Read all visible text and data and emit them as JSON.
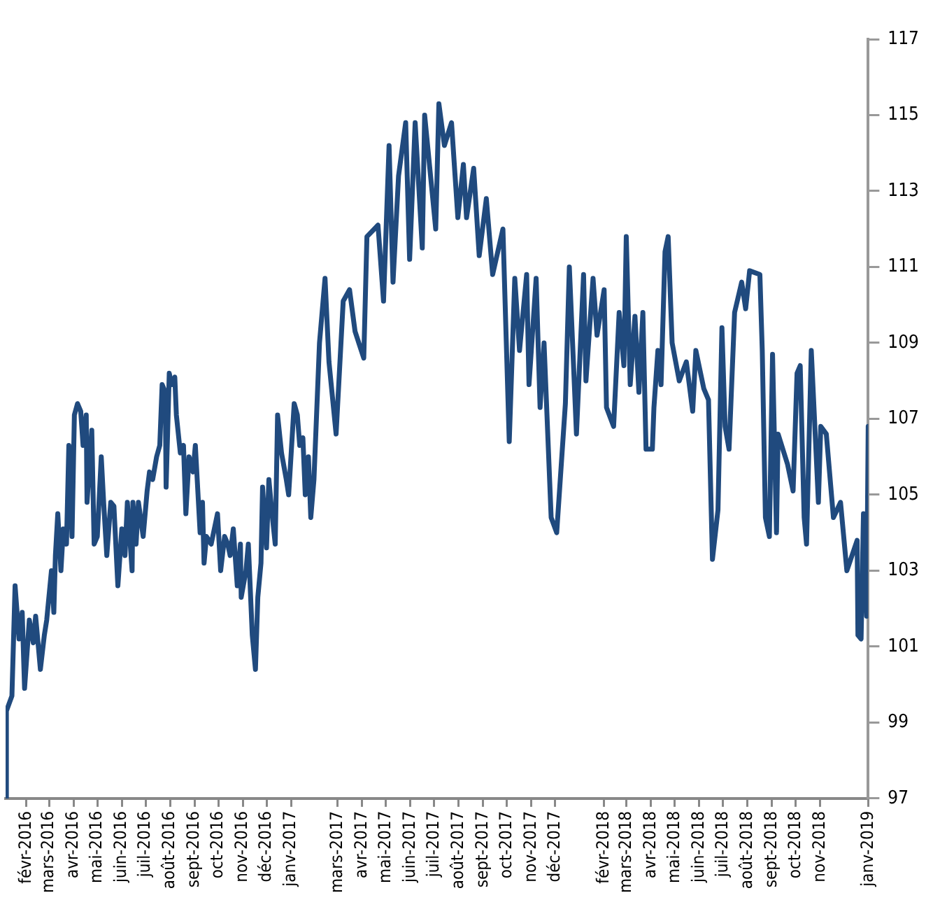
{
  "chart_data": {
    "type": "line",
    "xlim": [
      "2016-01-06",
      "2019-01-01"
    ],
    "ylim": [
      97,
      117
    ],
    "yticks": [
      97,
      99,
      101,
      103,
      105,
      107,
      109,
      111,
      113,
      115,
      117
    ],
    "xticks": [
      {
        "value": "2016-02-01",
        "label": "févr-2016"
      },
      {
        "value": "2016-03-01",
        "label": "mars-2016"
      },
      {
        "value": "2016-04-01",
        "label": "avr-2016"
      },
      {
        "value": "2016-05-01",
        "label": "mai-2016"
      },
      {
        "value": "2016-06-01",
        "label": "juin-2016"
      },
      {
        "value": "2016-07-01",
        "label": "juil-2016"
      },
      {
        "value": "2016-08-01",
        "label": "août-2016"
      },
      {
        "value": "2016-09-01",
        "label": "sept-2016"
      },
      {
        "value": "2016-10-01",
        "label": "oct-2016"
      },
      {
        "value": "2016-11-01",
        "label": "nov-2016"
      },
      {
        "value": "2016-12-01",
        "label": "déc-2016"
      },
      {
        "value": "2017-01-01",
        "label": "janv-2017"
      },
      {
        "value": "2017-03-01",
        "label": "mars-2017"
      },
      {
        "value": "2017-04-01",
        "label": "avr-2017"
      },
      {
        "value": "2017-05-01",
        "label": "mai-2017"
      },
      {
        "value": "2017-06-01",
        "label": "juin-2017"
      },
      {
        "value": "2017-07-01",
        "label": "juil-2017"
      },
      {
        "value": "2017-08-01",
        "label": "août-2017"
      },
      {
        "value": "2017-09-01",
        "label": "sept-2017"
      },
      {
        "value": "2017-10-01",
        "label": "oct-2017"
      },
      {
        "value": "2017-11-01",
        "label": "nov-2017"
      },
      {
        "value": "2017-12-01",
        "label": "déc-2017"
      },
      {
        "value": "2018-02-01",
        "label": "févr-2018"
      },
      {
        "value": "2018-03-01",
        "label": "mars-2018"
      },
      {
        "value": "2018-04-01",
        "label": "avr-2018"
      },
      {
        "value": "2018-05-01",
        "label": "mai-2018"
      },
      {
        "value": "2018-06-01",
        "label": "juin-2018"
      },
      {
        "value": "2018-07-01",
        "label": "juil-2018"
      },
      {
        "value": "2018-08-01",
        "label": "août-2018"
      },
      {
        "value": "2018-09-01",
        "label": "sept-2018"
      },
      {
        "value": "2018-10-01",
        "label": "oct-2018"
      },
      {
        "value": "2018-11-01",
        "label": "nov-2018"
      },
      {
        "value": "2019-01-01",
        "label": "janv-2019"
      }
    ],
    "grid": false,
    "legend": false,
    "marker": "none",
    "line_style": "solid",
    "series": [
      {
        "color": "#204a7e",
        "x": [
          "2016-01-06",
          "2016-01-07",
          "2016-01-14",
          "2016-01-18",
          "2016-01-23",
          "2016-01-27",
          "2016-01-30",
          "2016-02-05",
          "2016-02-10",
          "2016-02-13",
          "2016-02-19",
          "2016-02-24",
          "2016-02-27",
          "2016-03-04",
          "2016-03-07",
          "2016-03-09",
          "2016-03-12",
          "2016-03-16",
          "2016-03-19",
          "2016-03-23",
          "2016-03-26",
          "2016-03-30",
          "2016-04-02",
          "2016-04-06",
          "2016-04-10",
          "2016-04-13",
          "2016-04-17",
          "2016-04-18",
          "2016-04-24",
          "2016-04-27",
          "2016-05-01",
          "2016-05-06",
          "2016-05-09",
          "2016-05-13",
          "2016-05-18",
          "2016-05-22",
          "2016-05-27",
          "2016-06-01",
          "2016-06-05",
          "2016-06-08",
          "2016-06-14",
          "2016-06-15",
          "2016-06-19",
          "2016-06-22",
          "2016-06-28",
          "2016-07-03",
          "2016-07-06",
          "2016-07-10",
          "2016-07-15",
          "2016-07-19",
          "2016-07-22",
          "2016-07-26",
          "2016-07-27",
          "2016-07-31",
          "2016-08-03",
          "2016-08-07",
          "2016-08-09",
          "2016-08-14",
          "2016-08-18",
          "2016-08-21",
          "2016-08-25",
          "2016-08-30",
          "2016-09-02",
          "2016-09-08",
          "2016-09-11",
          "2016-09-13",
          "2016-09-16",
          "2016-09-22",
          "2016-09-25",
          "2016-09-30",
          "2016-10-04",
          "2016-10-09",
          "2016-10-13",
          "2016-10-16",
          "2016-10-20",
          "2016-10-25",
          "2016-10-29",
          "2016-10-30",
          "2016-11-05",
          "2016-11-08",
          "2016-11-13",
          "2016-11-17",
          "2016-11-20",
          "2016-11-24",
          "2016-11-26",
          "2016-12-01",
          "2016-12-04",
          "2016-12-08",
          "2016-12-12",
          "2016-12-15",
          "2016-12-20",
          "2016-12-26",
          "2016-12-29",
          "2017-01-05",
          "2017-01-09",
          "2017-01-12",
          "2017-01-16",
          "2017-01-19",
          "2017-01-23",
          "2017-01-26",
          "2017-01-30",
          "2017-02-06",
          "2017-02-13",
          "2017-02-18",
          "2017-02-27",
          "2017-03-08",
          "2017-03-16",
          "2017-03-23",
          "2017-04-03",
          "2017-04-07",
          "2017-04-21",
          "2017-04-28",
          "2017-05-05",
          "2017-05-10",
          "2017-05-17",
          "2017-05-26",
          "2017-05-31",
          "2017-06-07",
          "2017-06-16",
          "2017-06-19",
          "2017-07-03",
          "2017-07-07",
          "2017-07-14",
          "2017-07-23",
          "2017-07-31",
          "2017-08-07",
          "2017-08-11",
          "2017-08-20",
          "2017-08-27",
          "2017-09-05",
          "2017-09-13",
          "2017-09-26",
          "2017-10-04",
          "2017-10-11",
          "2017-10-17",
          "2017-10-26",
          "2017-10-29",
          "2017-11-07",
          "2017-11-12",
          "2017-11-17",
          "2017-11-26",
          "2017-12-03",
          "2017-12-14",
          "2017-12-19",
          "2017-12-28",
          "2018-01-06",
          "2018-01-09",
          "2018-01-18",
          "2018-01-23",
          "2018-02-01",
          "2018-02-04",
          "2018-02-13",
          "2018-02-20",
          "2018-02-26",
          "2018-03-01",
          "2018-03-06",
          "2018-03-12",
          "2018-03-17",
          "2018-03-22",
          "2018-03-26",
          "2018-04-03",
          "2018-04-05",
          "2018-04-10",
          "2018-04-14",
          "2018-04-19",
          "2018-04-23",
          "2018-04-28",
          "2018-05-07",
          "2018-05-16",
          "2018-05-24",
          "2018-05-28",
          "2018-06-07",
          "2018-06-13",
          "2018-06-18",
          "2018-06-25",
          "2018-06-30",
          "2018-07-04",
          "2018-07-09",
          "2018-07-16",
          "2018-07-25",
          "2018-07-30",
          "2018-08-04",
          "2018-08-17",
          "2018-08-20",
          "2018-08-24",
          "2018-08-29",
          "2018-09-02",
          "2018-09-07",
          "2018-09-09",
          "2018-09-21",
          "2018-09-28",
          "2018-10-03",
          "2018-10-07",
          "2018-10-12",
          "2018-10-15",
          "2018-10-21",
          "2018-10-30",
          "2018-11-02",
          "2018-11-09",
          "2018-11-18",
          "2018-11-27",
          "2018-12-05",
          "2018-12-18",
          "2018-12-19",
          "2018-12-23",
          "2018-12-26",
          "2018-12-30",
          "2019-01-01"
        ],
        "values": [
          97.0,
          99.3,
          99.7,
          102.6,
          101.2,
          101.9,
          99.9,
          101.7,
          101.1,
          101.8,
          100.4,
          101.3,
          101.7,
          103.0,
          101.9,
          103.4,
          104.5,
          103.0,
          104.1,
          103.7,
          106.3,
          103.9,
          107.1,
          107.4,
          107.2,
          106.3,
          107.1,
          104.8,
          106.7,
          103.7,
          103.9,
          106.0,
          104.8,
          103.4,
          104.8,
          104.7,
          102.6,
          104.1,
          103.4,
          104.8,
          103.0,
          104.8,
          103.7,
          104.8,
          103.9,
          105.1,
          105.6,
          105.4,
          106.0,
          106.3,
          107.9,
          107.7,
          105.2,
          108.2,
          107.9,
          108.1,
          107.1,
          106.1,
          106.3,
          104.5,
          106.0,
          105.6,
          106.3,
          104.0,
          104.8,
          103.2,
          103.9,
          103.7,
          104.0,
          104.5,
          103.0,
          103.9,
          103.7,
          103.4,
          104.1,
          102.6,
          103.7,
          102.3,
          103.0,
          103.7,
          101.3,
          100.4,
          102.3,
          103.2,
          105.2,
          103.6,
          105.4,
          104.5,
          103.7,
          107.1,
          106.1,
          105.4,
          105.0,
          107.4,
          107.1,
          106.3,
          106.5,
          105.0,
          106.0,
          104.4,
          105.4,
          109.0,
          110.7,
          108.5,
          106.6,
          110.1,
          110.4,
          109.3,
          108.6,
          111.8,
          112.1,
          110.1,
          114.2,
          110.6,
          113.4,
          114.8,
          111.2,
          114.8,
          111.5,
          115.0,
          112.0,
          115.3,
          114.2,
          114.8,
          112.3,
          113.7,
          112.3,
          113.6,
          111.3,
          112.8,
          110.8,
          112.0,
          106.4,
          110.7,
          108.8,
          110.8,
          107.9,
          110.7,
          107.3,
          109.0,
          104.4,
          104.0,
          107.4,
          111.0,
          106.6,
          110.8,
          108.0,
          110.7,
          109.2,
          110.4,
          107.3,
          106.8,
          109.8,
          108.4,
          111.8,
          107.9,
          109.7,
          107.7,
          109.8,
          106.2,
          106.2,
          107.3,
          108.8,
          107.9,
          111.4,
          111.8,
          109.0,
          108.0,
          108.5,
          107.2,
          108.8,
          107.8,
          107.5,
          103.3,
          104.6,
          109.4,
          106.8,
          106.2,
          109.8,
          110.6,
          109.9,
          110.9,
          110.8,
          108.8,
          104.4,
          103.9,
          108.7,
          104.0,
          106.6,
          105.8,
          105.1,
          108.2,
          108.4,
          104.4,
          103.7,
          108.8,
          104.8,
          106.8,
          106.6,
          104.4,
          104.8,
          103.0,
          103.8,
          101.3,
          101.2,
          104.5,
          101.8,
          106.8
        ]
      }
    ]
  }
}
